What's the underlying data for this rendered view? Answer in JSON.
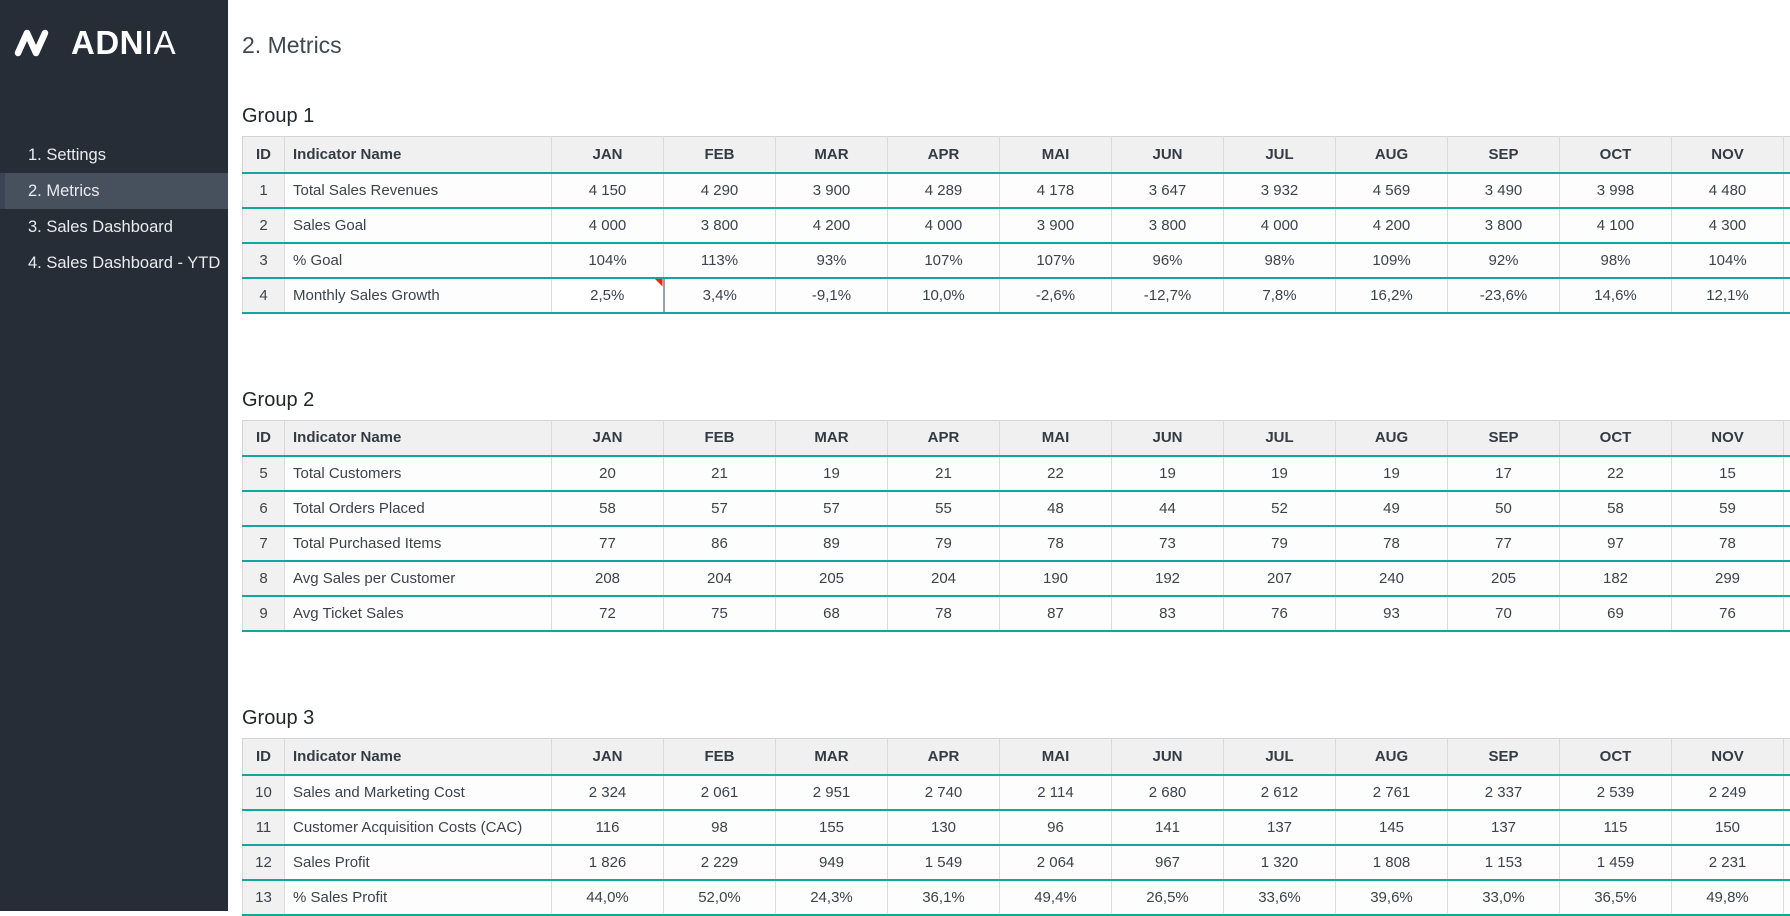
{
  "sidebar": {
    "logo_bold": "ADN",
    "logo_light": "IA",
    "items": [
      {
        "label": "1. Settings",
        "active": false
      },
      {
        "label": "2. Metrics",
        "active": true
      },
      {
        "label": "3. Sales Dashboard",
        "active": false
      },
      {
        "label": "4. Sales Dashboard - YTD",
        "active": false
      }
    ]
  },
  "page_title": "2. Metrics",
  "table": {
    "id_header": "ID",
    "indicator_header": "Indicator Name",
    "months": [
      "JAN",
      "FEB",
      "MAR",
      "APR",
      "MAI",
      "JUN",
      "JUL",
      "AUG",
      "SEP",
      "OCT",
      "NOV"
    ]
  },
  "groups": [
    {
      "title": "Group 1",
      "rows": [
        {
          "id": "1",
          "name": "Total Sales Revenues",
          "values": [
            "4 150",
            "4 290",
            "3 900",
            "4 289",
            "4 178",
            "3 647",
            "3 932",
            "4 569",
            "3 490",
            "3 998",
            "4 480"
          ]
        },
        {
          "id": "2",
          "name": "Sales Goal",
          "values": [
            "4 000",
            "3 800",
            "4 200",
            "4 000",
            "3 900",
            "3 800",
            "4 000",
            "4 200",
            "3 800",
            "4 100",
            "4 300"
          ]
        },
        {
          "id": "3",
          "name": "% Goal",
          "values": [
            "104%",
            "113%",
            "93%",
            "107%",
            "107%",
            "96%",
            "98%",
            "109%",
            "92%",
            "98%",
            "104%"
          ]
        },
        {
          "id": "4",
          "name": "Monthly Sales Growth",
          "marker_month_index": 0,
          "values": [
            "2,5%",
            "3,4%",
            "-9,1%",
            "10,0%",
            "-2,6%",
            "-12,7%",
            "7,8%",
            "16,2%",
            "-23,6%",
            "14,6%",
            "12,1%"
          ]
        }
      ]
    },
    {
      "title": "Group 2",
      "rows": [
        {
          "id": "5",
          "name": "Total Customers",
          "values": [
            "20",
            "21",
            "19",
            "21",
            "22",
            "19",
            "19",
            "19",
            "17",
            "22",
            "15"
          ]
        },
        {
          "id": "6",
          "name": "Total Orders Placed",
          "values": [
            "58",
            "57",
            "57",
            "55",
            "48",
            "44",
            "52",
            "49",
            "50",
            "58",
            "59"
          ]
        },
        {
          "id": "7",
          "name": "Total Purchased Items",
          "values": [
            "77",
            "86",
            "89",
            "79",
            "78",
            "73",
            "79",
            "78",
            "77",
            "97",
            "78"
          ]
        },
        {
          "id": "8",
          "name": "Avg Sales per Customer",
          "values": [
            "208",
            "204",
            "205",
            "204",
            "190",
            "192",
            "207",
            "240",
            "205",
            "182",
            "299"
          ]
        },
        {
          "id": "9",
          "name": "Avg Ticket Sales",
          "values": [
            "72",
            "75",
            "68",
            "78",
            "87",
            "83",
            "76",
            "93",
            "70",
            "69",
            "76"
          ]
        }
      ]
    },
    {
      "title": "Group 3",
      "rows": [
        {
          "id": "10",
          "name": "Sales and Marketing Cost",
          "values": [
            "2 324",
            "2 061",
            "2 951",
            "2 740",
            "2 114",
            "2 680",
            "2 612",
            "2 761",
            "2 337",
            "2 539",
            "2 249"
          ]
        },
        {
          "id": "11",
          "name": "Customer Acquisition Costs (CAC)",
          "values": [
            "116",
            "98",
            "155",
            "130",
            "96",
            "141",
            "137",
            "145",
            "137",
            "115",
            "150"
          ]
        },
        {
          "id": "12",
          "name": "Sales Profit",
          "values": [
            "1 826",
            "2 229",
            "949",
            "1 549",
            "2 064",
            "967",
            "1 320",
            "1 808",
            "1 153",
            "1 459",
            "2 231"
          ]
        },
        {
          "id": "13",
          "name": "% Sales Profit",
          "values": [
            "44,0%",
            "52,0%",
            "24,3%",
            "36,1%",
            "49,4%",
            "26,5%",
            "33,6%",
            "39,6%",
            "33,0%",
            "36,5%",
            "49,8%"
          ]
        }
      ]
    }
  ],
  "colors": {
    "sidebar_bg": "#262d36",
    "sidebar_active_bg": "#47515d",
    "accent_teal": "#12a79c",
    "header_row_bg": "#f0f0f0",
    "comment_marker_red": "#f42300"
  }
}
